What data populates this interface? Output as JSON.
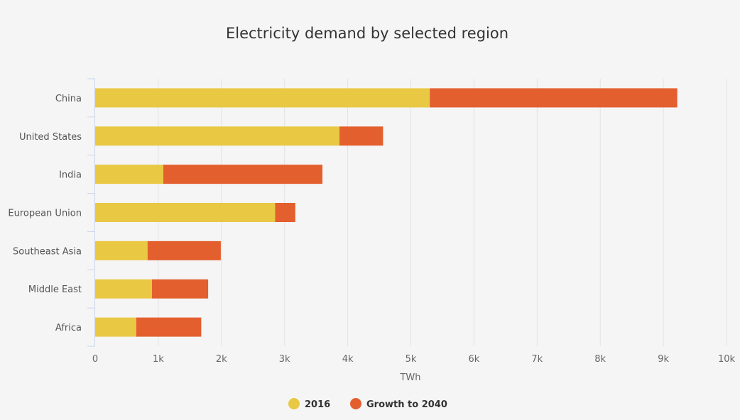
{
  "chart_data": {
    "type": "bar",
    "orientation": "horizontal",
    "stacked": true,
    "title": "Electricity demand by selected region",
    "categories": [
      "China",
      "United States",
      "India",
      "European Union",
      "Southeast Asia",
      "Middle East",
      "Africa"
    ],
    "series": [
      {
        "name": "2016",
        "color": "#e9c843",
        "values": [
          5300,
          3870,
          1080,
          2850,
          830,
          900,
          650
        ]
      },
      {
        "name": "Growth to 2040",
        "color": "#e35f2e",
        "values": [
          3920,
          690,
          2520,
          320,
          1160,
          890,
          1030
        ]
      }
    ],
    "xlabel": "TWh",
    "ylabel": "",
    "xlim": [
      0,
      10000
    ],
    "x_ticks": [
      0,
      1000,
      2000,
      3000,
      4000,
      5000,
      6000,
      7000,
      8000,
      9000,
      10000
    ],
    "x_tick_labels": [
      "0",
      "1k",
      "2k",
      "3k",
      "4k",
      "5k",
      "6k",
      "7k",
      "8k",
      "9k",
      "10k"
    ],
    "grid": true,
    "legend_position": "bottom-center"
  }
}
